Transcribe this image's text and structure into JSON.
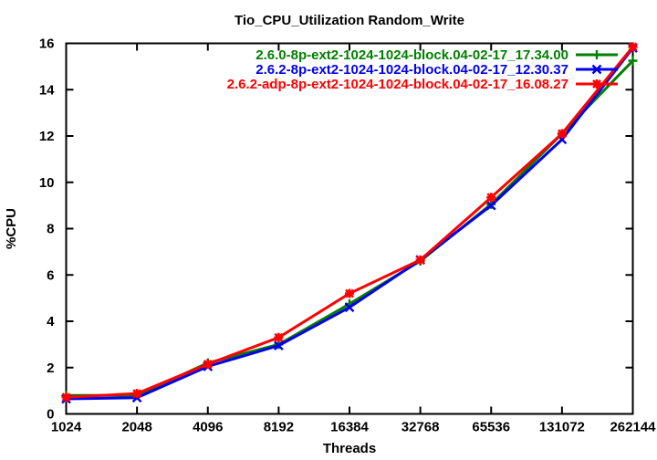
{
  "window": {
    "background": "#ffffff"
  },
  "chart_data": {
    "type": "line",
    "title": "Tio_CPU_Utilization Random_Write",
    "xlabel": "Threads",
    "ylabel": "%CPU",
    "categories": [
      "1024",
      "2048",
      "4096",
      "8192",
      "16384",
      "32768",
      "65536",
      "131072",
      "262144"
    ],
    "x_scale_note": "log2-spaced thread counts rendered at equal intervals",
    "ylim": [
      0,
      16
    ],
    "ytick_step": 2,
    "yticks": [
      0,
      2,
      4,
      6,
      8,
      10,
      12,
      14,
      16
    ],
    "grid": false,
    "legend_position": "top-right-inside",
    "border_color": "#000000",
    "series": [
      {
        "name": "2.6.0-8p-ext2-1024-1024-block.04-02-17_17.34.00",
        "color": "#008000",
        "marker": "plus",
        "values": [
          0.8,
          0.8,
          2.2,
          3.0,
          4.75,
          6.6,
          9.05,
          12.1,
          15.25
        ]
      },
      {
        "name": "2.6.2-8p-ext2-1024-1024-block.04-02-17_12.30.37",
        "color": "#0000ee",
        "marker": "cross",
        "values": [
          0.65,
          0.7,
          2.05,
          2.95,
          4.6,
          6.65,
          9.0,
          11.85,
          15.8
        ]
      },
      {
        "name": "2.6.2-adp-8p-ext2-1024-1024-block.04-02-17_16.08.27",
        "color": "#ff0000",
        "marker": "star",
        "values": [
          0.72,
          0.88,
          2.15,
          3.3,
          5.2,
          6.65,
          9.35,
          12.1,
          15.85
        ]
      }
    ]
  }
}
